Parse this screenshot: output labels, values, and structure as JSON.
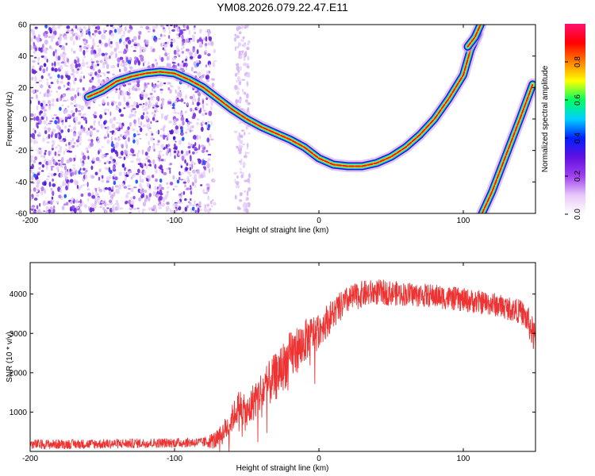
{
  "title": "YM08.2026.079.22.47.E11",
  "chart_data": [
    {
      "type": "heatmap",
      "name": "spectrogram",
      "xlabel": "Height of straight line (km)",
      "ylabel": "Frequency (Hz)",
      "xlim": [
        -200,
        150
      ],
      "ylim": [
        -60,
        60
      ],
      "x_ticks": [
        "-200",
        "-100",
        "0",
        "100"
      ],
      "x_tick_values": [
        -200,
        -100,
        0,
        100
      ],
      "y_ticks": [
        "60",
        "40",
        "20",
        "0",
        "-20",
        "-40",
        "-60"
      ],
      "y_tick_values": [
        60,
        40,
        20,
        0,
        -20,
        -40,
        -60
      ],
      "trace_main": [
        [
          -160,
          14
        ],
        [
          -150,
          18
        ],
        [
          -140,
          24
        ],
        [
          -130,
          27
        ],
        [
          -120,
          29
        ],
        [
          -110,
          30
        ],
        [
          -100,
          29
        ],
        [
          -90,
          25
        ],
        [
          -80,
          20
        ],
        [
          -70,
          13
        ],
        [
          -60,
          6
        ],
        [
          -50,
          0
        ],
        [
          -40,
          -5
        ],
        [
          -30,
          -9
        ],
        [
          -20,
          -13
        ],
        [
          -10,
          -18
        ],
        [
          0,
          -25
        ],
        [
          10,
          -29
        ],
        [
          20,
          -30
        ],
        [
          30,
          -30
        ],
        [
          40,
          -28
        ],
        [
          50,
          -24
        ],
        [
          60,
          -18
        ],
        [
          70,
          -10
        ],
        [
          80,
          0
        ],
        [
          90,
          13
        ],
        [
          100,
          28
        ],
        [
          105,
          44
        ],
        [
          110,
          54
        ]
      ],
      "trace_branch": [
        [
          103,
          46
        ],
        [
          108,
          52
        ],
        [
          112,
          60
        ]
      ],
      "trace_second": [
        [
          113,
          -60
        ],
        [
          120,
          -46
        ],
        [
          130,
          -22
        ],
        [
          140,
          2
        ],
        [
          148,
          22
        ]
      ],
      "colorbar": {
        "label": "Normalized spectral amplitude",
        "range": [
          0,
          1
        ],
        "ticks": [
          "0.0",
          "0.2",
          "0.4",
          "0.6",
          "0.8"
        ],
        "tick_values": [
          0.0,
          0.2,
          0.4,
          0.6,
          0.8
        ],
        "colors": [
          "#ffffff",
          "#e8c8f8",
          "#a040f0",
          "#6010e0",
          "#0020ff",
          "#00d0ff",
          "#00ff60",
          "#ffff00",
          "#ff8000",
          "#ff0000",
          "#ff1070"
        ]
      }
    },
    {
      "type": "line",
      "name": "snr",
      "xlabel": "Height of straight line (km)",
      "ylabel": "SNR (10 * v/v)",
      "xlim": [
        -200,
        150
      ],
      "ylim": [
        0,
        4800
      ],
      "x_ticks": [
        "-200",
        "-100",
        "0",
        "100"
      ],
      "x_tick_values": [
        -200,
        -100,
        0,
        100
      ],
      "y_ticks": [
        "1000",
        "2000",
        "3000",
        "4000"
      ],
      "y_tick_values": [
        1000,
        2000,
        3000,
        4000
      ],
      "color": "#ee3333",
      "envelope": [
        [
          -200,
          180
        ],
        [
          -150,
          190
        ],
        [
          -100,
          220
        ],
        [
          -80,
          230
        ],
        [
          -70,
          300
        ],
        [
          -62,
          700
        ],
        [
          -55,
          1200
        ],
        [
          -50,
          900
        ],
        [
          -45,
          1300
        ],
        [
          -40,
          1500
        ],
        [
          -30,
          1900
        ],
        [
          -20,
          2400
        ],
        [
          -10,
          2800
        ],
        [
          0,
          3100
        ],
        [
          10,
          3500
        ],
        [
          20,
          3850
        ],
        [
          30,
          4000
        ],
        [
          40,
          4050
        ],
        [
          60,
          4000
        ],
        [
          80,
          3950
        ],
        [
          100,
          3850
        ],
        [
          120,
          3750
        ],
        [
          140,
          3550
        ],
        [
          145,
          3300
        ],
        [
          150,
          2800
        ]
      ],
      "noise": [
        [
          -200,
          120
        ],
        [
          -80,
          120
        ],
        [
          -70,
          250
        ],
        [
          -40,
          550
        ],
        [
          -20,
          650
        ],
        [
          0,
          450
        ],
        [
          20,
          350
        ],
        [
          60,
          300
        ],
        [
          140,
          300
        ],
        [
          150,
          450
        ]
      ]
    }
  ]
}
